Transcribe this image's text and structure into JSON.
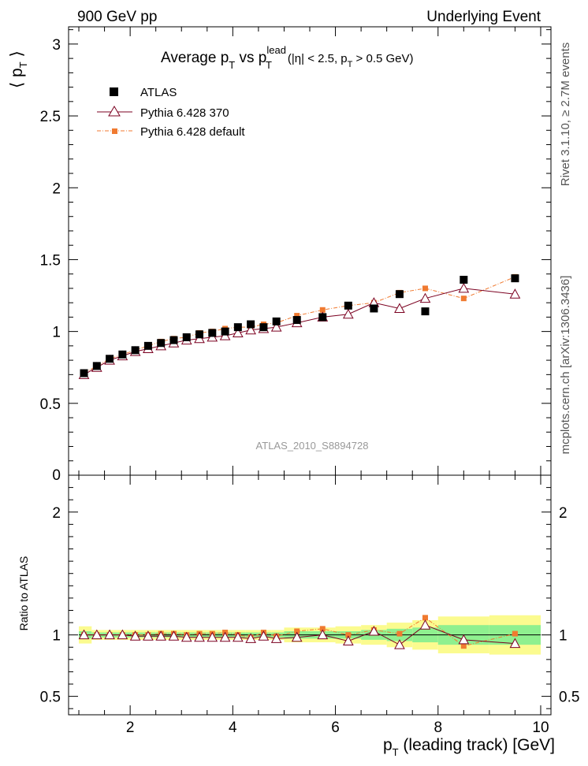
{
  "header": {
    "left": "900 GeV pp",
    "right": "Underlying Event"
  },
  "side_text": {
    "rivet": "Rivet 3.1.10, ≥ 2.7M events",
    "mcplots": "mcplots.cern.ch [arXiv:1306.3436]"
  },
  "chart_data": [
    {
      "type": "scatter",
      "title": {
        "main": "Average p",
        "main_sub": "T",
        "mid": " vs p",
        "mid_sup": "lead",
        "mid_sub": "T",
        "cut": "(|η| < 2.5, p",
        "cut_sub": "T",
        "cut_end": " > 0.5 GeV)"
      },
      "ylabel": {
        "left": "⟨ p",
        "sub": "T",
        "right": " ⟩"
      },
      "watermark": "ATLAS_2010_S8894728",
      "xlim": [
        0.8,
        10.2
      ],
      "ylim": [
        0,
        3.12
      ],
      "y_ticks": [
        0.5,
        1,
        1.5,
        2,
        2.5,
        3
      ],
      "y_tick_labels": [
        "0.5",
        "1",
        "1.5",
        "2",
        "2.5",
        "3"
      ],
      "y_zero_label": "0",
      "legend_position": "top-left",
      "series": [
        {
          "name": "ATLAS",
          "color": "#000000",
          "marker": "square",
          "x": [
            1.1,
            1.35,
            1.6,
            1.85,
            2.1,
            2.35,
            2.6,
            2.85,
            3.1,
            3.35,
            3.6,
            3.85,
            4.1,
            4.35,
            4.6,
            4.85,
            5.25,
            5.75,
            6.25,
            6.75,
            7.25,
            7.75,
            8.5,
            9.5
          ],
          "y": [
            0.71,
            0.76,
            0.81,
            0.84,
            0.87,
            0.9,
            0.92,
            0.94,
            0.96,
            0.98,
            0.99,
            1.0,
            1.03,
            1.05,
            1.03,
            1.07,
            1.08,
            1.1,
            1.18,
            1.16,
            1.26,
            1.14,
            1.36,
            1.37
          ]
        },
        {
          "name": "Pythia 6.428 370",
          "color": "#7b0020",
          "marker": "triangle",
          "x": [
            1.1,
            1.35,
            1.6,
            1.85,
            2.1,
            2.35,
            2.6,
            2.85,
            3.1,
            3.35,
            3.6,
            3.85,
            4.1,
            4.35,
            4.6,
            4.85,
            5.25,
            5.75,
            6.25,
            6.75,
            7.25,
            7.75,
            8.5,
            9.5
          ],
          "y": [
            0.7,
            0.75,
            0.8,
            0.83,
            0.86,
            0.88,
            0.9,
            0.92,
            0.94,
            0.95,
            0.96,
            0.97,
            0.99,
            1.01,
            1.02,
            1.03,
            1.06,
            1.1,
            1.12,
            1.2,
            1.16,
            1.23,
            1.3,
            1.26
          ]
        },
        {
          "name": "Pythia 6.428 default",
          "color": "#f07a30",
          "marker": "square-small",
          "x": [
            1.1,
            1.35,
            1.6,
            1.85,
            2.1,
            2.35,
            2.6,
            2.85,
            3.1,
            3.35,
            3.6,
            3.85,
            4.1,
            4.35,
            4.6,
            4.85,
            5.25,
            5.75,
            6.25,
            6.75,
            7.25,
            7.75,
            8.5,
            9.5
          ],
          "y": [
            0.71,
            0.76,
            0.81,
            0.84,
            0.87,
            0.9,
            0.93,
            0.95,
            0.96,
            0.99,
            1.0,
            1.02,
            1.03,
            1.03,
            1.05,
            1.06,
            1.11,
            1.15,
            1.18,
            1.2,
            1.27,
            1.3,
            1.23,
            1.38
          ]
        }
      ]
    },
    {
      "type": "scatter",
      "ylabel": "Ratio to ATLAS",
      "xlabel": {
        "left": "p",
        "sub": "T",
        "right": " (leading track) [GeV]"
      },
      "xlim": [
        0.8,
        10.2
      ],
      "ylim": [
        0.35,
        2.3
      ],
      "x_ticks": [
        2,
        4,
        6,
        8,
        10
      ],
      "x_tick_labels": [
        "2",
        "4",
        "6",
        "8",
        "10"
      ],
      "y_ticks": [
        0.5,
        1,
        2
      ],
      "y_tick_labels": [
        "0.5",
        "1",
        "2"
      ],
      "bands": {
        "inner_color": "#8ff08f",
        "outer_color": "#fbfb8f",
        "edges": [
          1.0,
          1.25,
          1.5,
          1.75,
          2.0,
          2.25,
          2.5,
          2.75,
          3.0,
          3.25,
          3.5,
          3.75,
          4.0,
          4.25,
          4.5,
          4.75,
          5.0,
          5.5,
          6.0,
          6.5,
          7.0,
          7.5,
          8.0,
          9.0,
          10.0
        ],
        "inner": [
          0.03,
          0.02,
          0.02,
          0.02,
          0.02,
          0.02,
          0.02,
          0.02,
          0.02,
          0.02,
          0.02,
          0.02,
          0.02,
          0.02,
          0.02,
          0.02,
          0.03,
          0.03,
          0.03,
          0.04,
          0.05,
          0.06,
          0.08,
          0.08
        ],
        "outer": [
          0.07,
          0.04,
          0.04,
          0.04,
          0.04,
          0.04,
          0.04,
          0.04,
          0.04,
          0.04,
          0.04,
          0.04,
          0.04,
          0.04,
          0.04,
          0.04,
          0.06,
          0.06,
          0.07,
          0.08,
          0.1,
          0.12,
          0.15,
          0.16
        ]
      },
      "series": [
        {
          "name": "Pythia 6.428 370",
          "color": "#7b0020",
          "marker": "triangle",
          "x": [
            1.1,
            1.35,
            1.6,
            1.85,
            2.1,
            2.35,
            2.6,
            2.85,
            3.1,
            3.35,
            3.6,
            3.85,
            4.1,
            4.35,
            4.6,
            4.85,
            5.25,
            5.75,
            6.25,
            6.75,
            7.25,
            7.75,
            8.5,
            9.5
          ],
          "y": [
            1.0,
            1.0,
            1.0,
            1.0,
            0.99,
            0.99,
            0.99,
            0.99,
            0.98,
            0.98,
            0.98,
            0.98,
            0.98,
            0.97,
            0.99,
            0.97,
            0.98,
            1.0,
            0.95,
            1.03,
            0.92,
            1.08,
            0.96,
            0.93
          ]
        },
        {
          "name": "Pythia 6.428 default",
          "color": "#f07a30",
          "marker": "square-small",
          "x": [
            1.1,
            1.35,
            1.6,
            1.85,
            2.1,
            2.35,
            2.6,
            2.85,
            3.1,
            3.35,
            3.6,
            3.85,
            4.1,
            4.35,
            4.6,
            4.85,
            5.25,
            5.75,
            6.25,
            6.75,
            7.25,
            7.75,
            8.5,
            9.5
          ],
          "y": [
            1.0,
            1.0,
            1.0,
            1.0,
            1.0,
            1.0,
            1.01,
            1.01,
            1.0,
            1.01,
            1.01,
            1.02,
            1.0,
            0.98,
            1.02,
            0.99,
            1.03,
            1.05,
            1.0,
            1.04,
            1.01,
            1.14,
            0.91,
            1.01
          ]
        }
      ]
    }
  ]
}
